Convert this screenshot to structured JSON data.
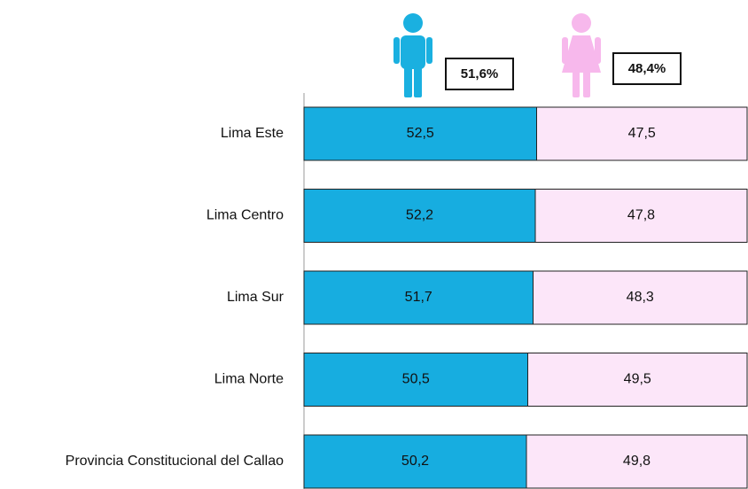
{
  "chart_data": {
    "type": "stacked_barh",
    "categories": [
      "Lima Este",
      "Lima Centro",
      "Lima Sur",
      "Lima Norte",
      "Provincia Constitucional del Callao"
    ],
    "series": [
      {
        "color": "#17ade0",
        "values": [
          52.5,
          52.2,
          51.7,
          50.5,
          50.2
        ],
        "value_labels": [
          "52,5",
          "52,2",
          "51,7",
          "50,5",
          "50,2"
        ]
      },
      {
        "color": "#fce6f9",
        "values": [
          47.5,
          47.8,
          48.3,
          49.5,
          49.8
        ],
        "value_labels": [
          "47,5",
          "47,8",
          "48,3",
          "49,5",
          "49,8"
        ]
      }
    ],
    "totals": [
      {
        "value": 51.6,
        "label": "51,6%",
        "color": "#17ade0"
      },
      {
        "value": 48.4,
        "label": "48,4%",
        "color": "#f7b8ec"
      }
    ],
    "xlim": [
      0,
      100
    ]
  }
}
